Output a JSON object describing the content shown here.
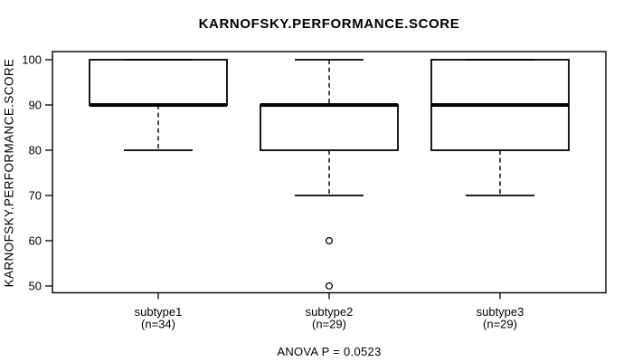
{
  "chart": {
    "title": "KARNOFSKY.PERFORMANCE.SCORE",
    "ylabel": "KARNOFSKY.PERFORMANCE.SCORE",
    "footnote": "ANOVA P = 0.0523"
  },
  "chart_data": {
    "type": "boxplot",
    "title": "KARNOFSKY.PERFORMANCE.SCORE",
    "xlabel": "",
    "ylabel": "KARNOFSKY.PERFORMANCE.SCORE",
    "footnote": "ANOVA P = 0.0523",
    "grid": false,
    "ylim": [
      48,
      102
    ],
    "y_ticks": [
      50,
      60,
      70,
      80,
      90,
      100
    ],
    "line_color": "#000000",
    "background_color": "#ffffff",
    "groups": [
      {
        "label": "subtype1",
        "sublabel": "(n=34)",
        "n": 34,
        "q1": 90,
        "median": 90,
        "q3": 100,
        "whisker_low": 80,
        "whisker_high": 100,
        "outliers": []
      },
      {
        "label": "subtype2",
        "sublabel": "(n=29)",
        "n": 29,
        "q1": 80,
        "median": 90,
        "q3": 90,
        "whisker_low": 70,
        "whisker_high": 100,
        "outliers": [
          60,
          50
        ]
      },
      {
        "label": "subtype3",
        "sublabel": "(n=29)",
        "n": 29,
        "q1": 80,
        "median": 90,
        "q3": 100,
        "whisker_low": 70,
        "whisker_high": 100,
        "outliers": []
      }
    ]
  }
}
